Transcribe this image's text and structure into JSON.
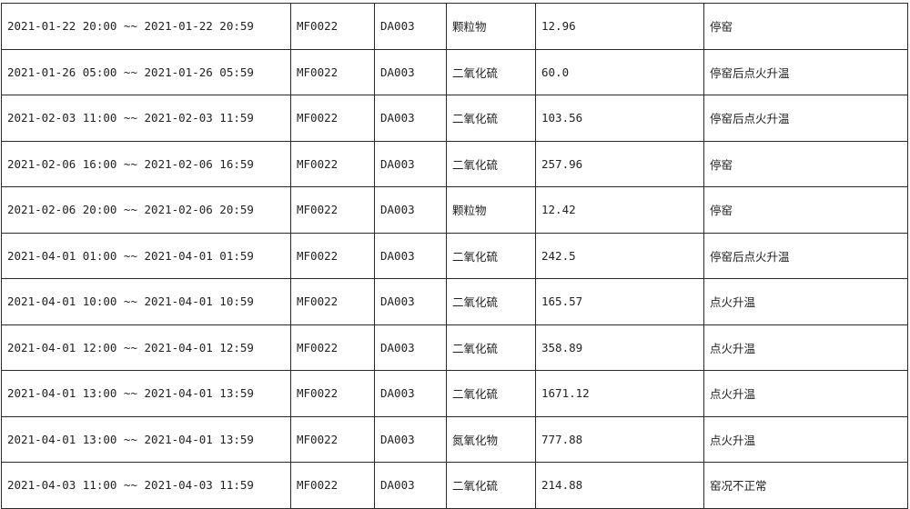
{
  "rows": [
    {
      "period": "2021-01-22 20:00 ~~ 2021-01-22 20:59",
      "site": "MF0022",
      "outlet": "DA003",
      "pollutant": "颗粒物",
      "value": "12.96",
      "status": "停窑"
    },
    {
      "period": "2021-01-26 05:00 ~~ 2021-01-26 05:59",
      "site": "MF0022",
      "outlet": "DA003",
      "pollutant": "二氧化硫",
      "value": "60.0",
      "status": "停窑后点火升温"
    },
    {
      "period": "2021-02-03 11:00 ~~ 2021-02-03 11:59",
      "site": "MF0022",
      "outlet": "DA003",
      "pollutant": "二氧化硫",
      "value": "103.56",
      "status": "停窑后点火升温"
    },
    {
      "period": "2021-02-06 16:00 ~~ 2021-02-06 16:59",
      "site": "MF0022",
      "outlet": "DA003",
      "pollutant": "二氧化硫",
      "value": "257.96",
      "status": "停窑"
    },
    {
      "period": "2021-02-06 20:00 ~~ 2021-02-06 20:59",
      "site": "MF0022",
      "outlet": "DA003",
      "pollutant": "颗粒物",
      "value": "12.42",
      "status": "停窑"
    },
    {
      "period": "2021-04-01 01:00 ~~ 2021-04-01 01:59",
      "site": "MF0022",
      "outlet": "DA003",
      "pollutant": "二氧化硫",
      "value": "242.5",
      "status": "停窑后点火升温"
    },
    {
      "period": "2021-04-01 10:00 ~~ 2021-04-01 10:59",
      "site": "MF0022",
      "outlet": "DA003",
      "pollutant": "二氧化硫",
      "value": "165.57",
      "status": "点火升温"
    },
    {
      "period": "2021-04-01 12:00 ~~ 2021-04-01 12:59",
      "site": "MF0022",
      "outlet": "DA003",
      "pollutant": "二氧化硫",
      "value": "358.89",
      "status": "点火升温"
    },
    {
      "period": "2021-04-01 13:00 ~~ 2021-04-01 13:59",
      "site": "MF0022",
      "outlet": "DA003",
      "pollutant": "二氧化硫",
      "value": "1671.12",
      "status": "点火升温"
    },
    {
      "period": "2021-04-01 13:00 ~~ 2021-04-01 13:59",
      "site": "MF0022",
      "outlet": "DA003",
      "pollutant": "氮氧化物",
      "value": "777.88",
      "status": "点火升温"
    },
    {
      "period": "2021-04-03 11:00 ~~ 2021-04-03 11:59",
      "site": "MF0022",
      "outlet": "DA003",
      "pollutant": "二氧化硫",
      "value": "214.88",
      "status": "窑况不正常"
    }
  ]
}
